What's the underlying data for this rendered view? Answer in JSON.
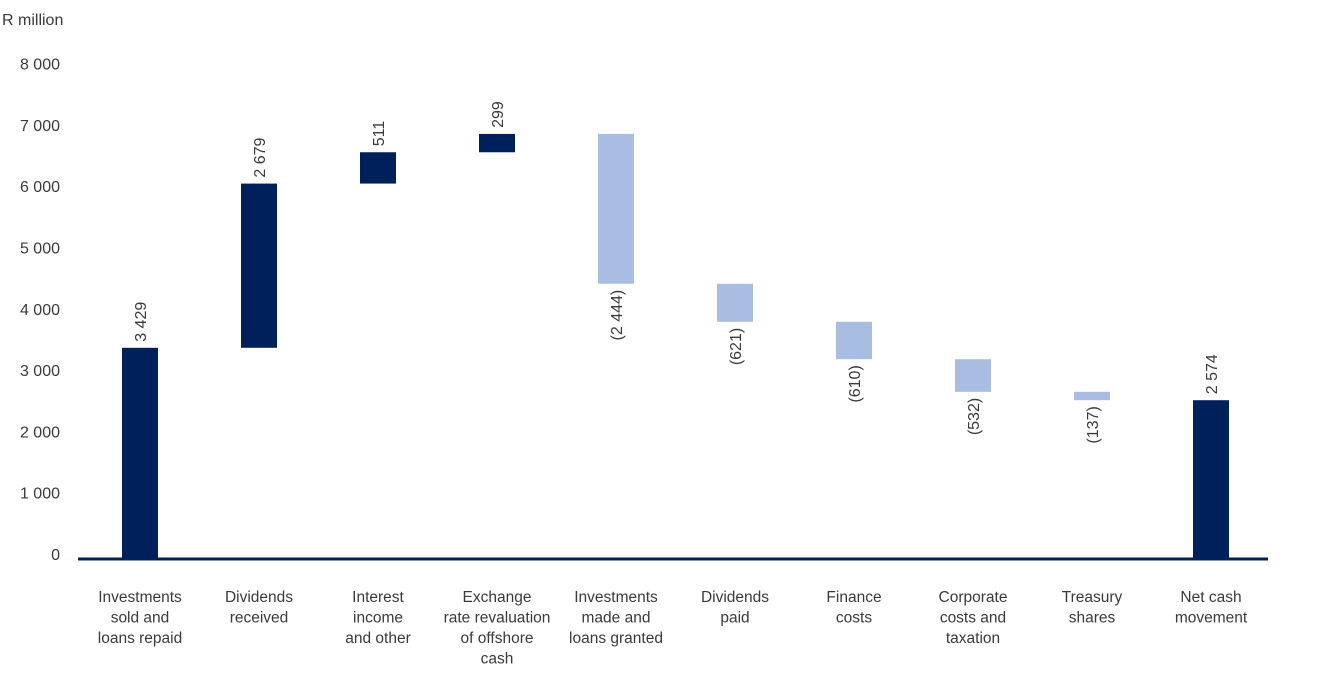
{
  "chart_data": {
    "type": "waterfall",
    "ylabel": "R million",
    "ylim": [
      0,
      8000
    ],
    "yticks": [
      0,
      1000,
      2000,
      3000,
      4000,
      5000,
      6000,
      7000,
      8000
    ],
    "ytick_labels": [
      "0",
      "1 000",
      "2 000",
      "3 000",
      "4 000",
      "5 000",
      "6 000",
      "7 000",
      "8 000"
    ],
    "grid": false,
    "colors": {
      "positive": "#00205b",
      "negative": "#a9bde3",
      "axis": "#00205b"
    },
    "bars": [
      {
        "category": [
          "Investments",
          "sold and",
          "loans repaid"
        ],
        "value": 3429,
        "label": "3 429",
        "kind": "total"
      },
      {
        "category": [
          "Dividends",
          "received"
        ],
        "value": 2679,
        "label": "2 679",
        "kind": "increase"
      },
      {
        "category": [
          "Interest",
          "income",
          "and other"
        ],
        "value": 511,
        "label": "511",
        "kind": "increase"
      },
      {
        "category": [
          "Exchange",
          "rate revaluation",
          "of offshore",
          "cash"
        ],
        "value": 299,
        "label": "299",
        "kind": "increase"
      },
      {
        "category": [
          "Investments",
          "made and",
          "loans granted"
        ],
        "value": -2444,
        "label": "(2 444)",
        "kind": "decrease"
      },
      {
        "category": [
          "Dividends",
          "paid"
        ],
        "value": -621,
        "label": "(621)",
        "kind": "decrease"
      },
      {
        "category": [
          "Finance",
          "costs"
        ],
        "value": -610,
        "label": "(610)",
        "kind": "decrease"
      },
      {
        "category": [
          "Corporate",
          "costs and",
          "taxation"
        ],
        "value": -532,
        "label": "(532)",
        "kind": "decrease"
      },
      {
        "category": [
          "Treasury",
          "shares"
        ],
        "value": -137,
        "label": "(137)",
        "kind": "decrease"
      },
      {
        "category": [
          "Net cash",
          "movement"
        ],
        "value": 2574,
        "label": "2 574",
        "kind": "total"
      }
    ]
  }
}
